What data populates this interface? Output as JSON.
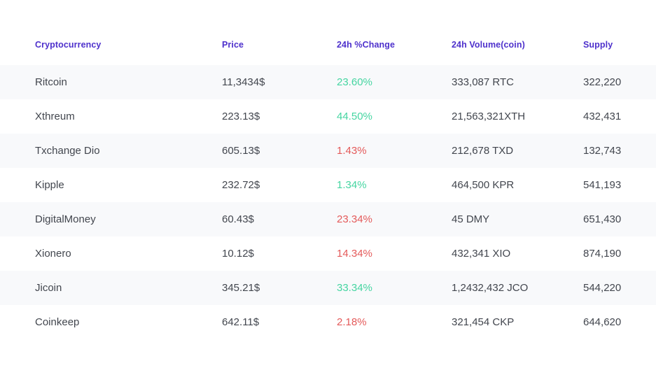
{
  "table": {
    "columns": [
      {
        "key": "name",
        "label": "Cryptocurrency"
      },
      {
        "key": "price",
        "label": "Price"
      },
      {
        "key": "change",
        "label": "24h %Change"
      },
      {
        "key": "volume",
        "label": "24h Volume(coin)"
      },
      {
        "key": "supply",
        "label": "Supply"
      }
    ],
    "rows": [
      {
        "name": "Ritcoin",
        "price": "11,3434$",
        "change": "23.60%",
        "change_direction": "up",
        "volume": "333,087 RTC",
        "supply": "322,220"
      },
      {
        "name": "Xthreum",
        "price": "223.13$",
        "change": "44.50%",
        "change_direction": "up",
        "volume": "21,563,321XTH",
        "supply": "432,431"
      },
      {
        "name": "Txchange Dio",
        "price": "605.13$",
        "change": "1.43%",
        "change_direction": "down",
        "volume": "212,678 TXD",
        "supply": "132,743"
      },
      {
        "name": "Kipple",
        "price": "232.72$",
        "change": "1.34%",
        "change_direction": "up",
        "volume": "464,500 KPR",
        "supply": "541,193"
      },
      {
        "name": "DigitalMoney",
        "price": "60.43$",
        "change": "23.34%",
        "change_direction": "down",
        "volume": "45 DMY",
        "supply": "651,430"
      },
      {
        "name": "Xionero",
        "price": "10.12$",
        "change": "14.34%",
        "change_direction": "down",
        "volume": "432,341 XIO",
        "supply": "874,190"
      },
      {
        "name": "Jicoin",
        "price": "345.21$",
        "change": "33.34%",
        "change_direction": "up",
        "volume": "1,2432,432 JCO",
        "supply": "544,220"
      },
      {
        "name": "Coinkeep",
        "price": "642.11$",
        "change": "2.18%",
        "change_direction": "down",
        "volume": "321,454 CKP",
        "supply": "644,620"
      }
    ]
  },
  "colors": {
    "header_text": "#4e31cc",
    "positive": "#45d5a1",
    "negative": "#e45a5a",
    "body_text": "#42464e",
    "stripe_bg": "#f8f9fb"
  }
}
